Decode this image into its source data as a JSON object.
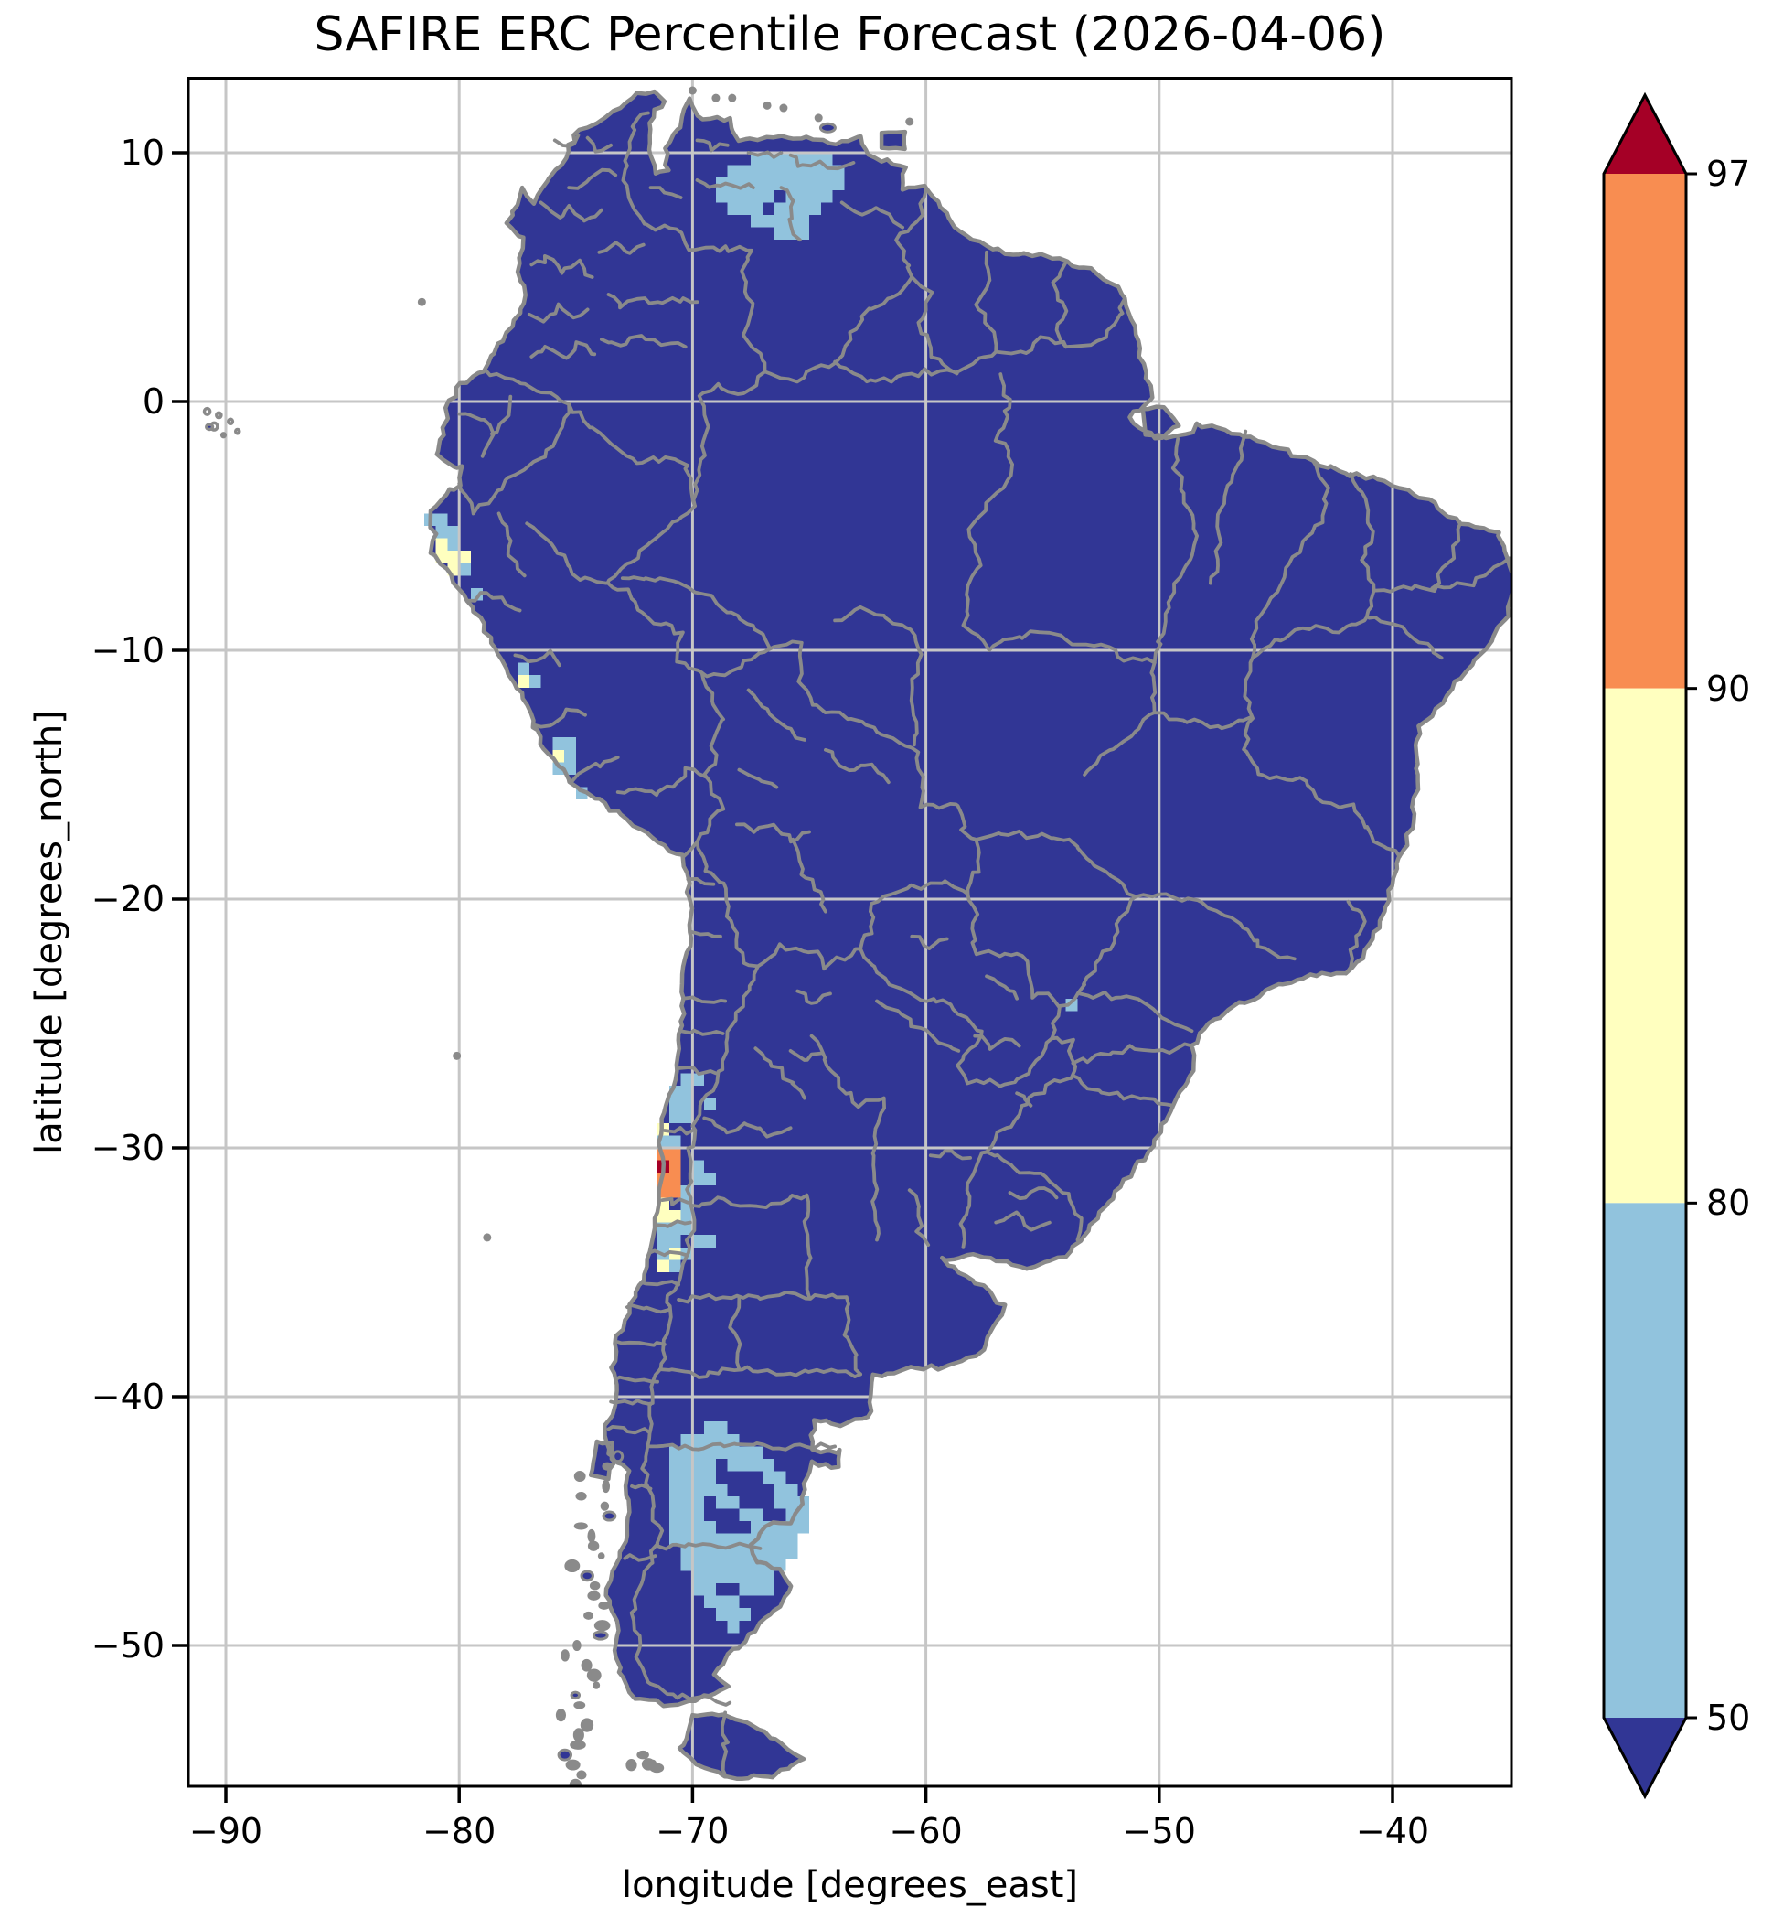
{
  "title": "SAFIRE ERC Percentile Forecast (2026-04-06)",
  "xlabel": "longitude [degrees_east]",
  "ylabel": "latitude [degrees_north]",
  "chart_data": {
    "type": "heatmap",
    "subtype": "geographic-percentile-map",
    "title": "SAFIRE ERC Percentile Forecast (2026-04-06)",
    "date": "2026-04-06",
    "xlabel": "longitude [degrees_east]",
    "ylabel": "latitude [degrees_north]",
    "xlim": [
      -91.6,
      -34.9
    ],
    "ylim": [
      -55.7,
      13.0
    ],
    "grid": true,
    "xtick_values": [
      -90,
      -80,
      -70,
      -60,
      -50,
      -40
    ],
    "xtick_labels": [
      "−90",
      "−80",
      "−70",
      "−60",
      "−50",
      "−40"
    ],
    "ytick_values": [
      10,
      0,
      -10,
      -20,
      -30,
      -40,
      -50
    ],
    "ytick_labels": [
      "10",
      "0",
      "−10",
      "−20",
      "−30",
      "−40",
      "−50"
    ],
    "cell_size_deg": 0.5,
    "base_value_label": "< 50",
    "colors": {
      "land_base": "#313695",
      "p50_80": "#91c3dd",
      "p80_90": "#ffffbf",
      "p90_97": "#f88d51",
      "over_97": "#a50026",
      "border_gray": "#8a8a8a",
      "gridline": "#c6c6c6"
    },
    "colorbar": {
      "levels": [
        50,
        80,
        90,
        97
      ],
      "tick_labels_top_to_bottom": [
        "97",
        "90",
        "80",
        "50"
      ],
      "extend": "both",
      "under_color": "#313695",
      "band_50_80": "#91c3dd",
      "band_80_90": "#ffffbf",
      "band_90_97": "#f88d51",
      "over_color": "#a50026"
    },
    "cells": {
      "p50_80": [
        [
          -67.5,
          10
        ],
        [
          -67,
          10
        ],
        [
          -66.5,
          10
        ],
        [
          -66,
          10
        ],
        [
          -65.5,
          10
        ],
        [
          -65,
          10
        ],
        [
          -64.5,
          10
        ],
        [
          -68.5,
          9.5
        ],
        [
          -68,
          9.5
        ],
        [
          -67.5,
          9.5
        ],
        [
          -67,
          9.5
        ],
        [
          -66.5,
          9.5
        ],
        [
          -66,
          9.5
        ],
        [
          -65.5,
          9.5
        ],
        [
          -65,
          9.5
        ],
        [
          -64.5,
          9.5
        ],
        [
          -64,
          9.5
        ],
        [
          -69,
          9
        ],
        [
          -68.5,
          9
        ],
        [
          -68,
          9
        ],
        [
          -67.5,
          9
        ],
        [
          -67,
          9
        ],
        [
          -66.5,
          9
        ],
        [
          -66,
          9
        ],
        [
          -65.5,
          9
        ],
        [
          -65,
          9
        ],
        [
          -64.5,
          9
        ],
        [
          -64,
          9
        ],
        [
          -69,
          8.5
        ],
        [
          -68.5,
          8.5
        ],
        [
          -68,
          8.5
        ],
        [
          -67.5,
          8.5
        ],
        [
          -67,
          8.5
        ],
        [
          -66,
          8.5
        ],
        [
          -65.5,
          8.5
        ],
        [
          -65,
          8.5
        ],
        [
          -64.5,
          8.5
        ],
        [
          -68.5,
          8
        ],
        [
          -68,
          8
        ],
        [
          -67.5,
          8
        ],
        [
          -66.5,
          8
        ],
        [
          -66,
          8
        ],
        [
          -65.5,
          8
        ],
        [
          -65,
          8
        ],
        [
          -67.5,
          7.5
        ],
        [
          -67,
          7.5
        ],
        [
          -66.5,
          7.5
        ],
        [
          -66,
          7.5
        ],
        [
          -65.5,
          7.5
        ],
        [
          -66.5,
          7
        ],
        [
          -66,
          7
        ],
        [
          -65.5,
          7
        ],
        [
          -54,
          -24
        ],
        [
          -81.5,
          -4.5
        ],
        [
          -81,
          -4.5
        ],
        [
          -81,
          -5
        ],
        [
          -80.5,
          -5
        ],
        [
          -80.5,
          -5.5
        ],
        [
          -80,
          -6.5
        ],
        [
          -79.5,
          -7.5
        ],
        [
          -77.5,
          -10.5
        ],
        [
          -77,
          -11
        ],
        [
          -76,
          -13.5
        ],
        [
          -75.5,
          -13.5
        ],
        [
          -75.5,
          -14
        ],
        [
          -76,
          -14.5
        ],
        [
          -75.5,
          -14.5
        ],
        [
          -75,
          -15.5
        ],
        [
          -70.5,
          -27
        ],
        [
          -70,
          -27
        ],
        [
          -71,
          -27.5
        ],
        [
          -70.5,
          -27.5
        ],
        [
          -71,
          -28
        ],
        [
          -70.5,
          -28
        ],
        [
          -69.5,
          -28
        ],
        [
          -71,
          -28.5
        ],
        [
          -70.5,
          -28.5
        ],
        [
          -71.5,
          -29.5
        ],
        [
          -71,
          -29.5
        ],
        [
          -70,
          -30.5
        ],
        [
          -70,
          -31
        ],
        [
          -69.5,
          -31
        ],
        [
          -70.5,
          -31.5
        ],
        [
          -70.5,
          -32
        ],
        [
          -70.5,
          -32.5
        ],
        [
          -71.5,
          -33
        ],
        [
          -71,
          -33
        ],
        [
          -70.5,
          -33
        ],
        [
          -71.5,
          -33.5
        ],
        [
          -71,
          -33.5
        ],
        [
          -70,
          -33.5
        ],
        [
          -69.5,
          -33.5
        ],
        [
          -71.5,
          -34
        ],
        [
          -70.5,
          -34
        ],
        [
          -71,
          -34.5
        ],
        [
          -69.5,
          -41
        ],
        [
          -69,
          -41
        ],
        [
          -70.5,
          -41.5
        ],
        [
          -70,
          -41.5
        ],
        [
          -69.5,
          -41.5
        ],
        [
          -69,
          -41.5
        ],
        [
          -68.5,
          -41.5
        ],
        [
          -71,
          -42
        ],
        [
          -70.5,
          -42
        ],
        [
          -70,
          -42
        ],
        [
          -69.5,
          -42
        ],
        [
          -69,
          -42
        ],
        [
          -68.5,
          -42
        ],
        [
          -68,
          -42
        ],
        [
          -67.5,
          -42
        ],
        [
          -71,
          -42.5
        ],
        [
          -70.5,
          -42.5
        ],
        [
          -70,
          -42.5
        ],
        [
          -69.5,
          -42.5
        ],
        [
          -68.5,
          -42.5
        ],
        [
          -68,
          -42.5
        ],
        [
          -67.5,
          -42.5
        ],
        [
          -67,
          -42.5
        ],
        [
          -71,
          -43
        ],
        [
          -70.5,
          -43
        ],
        [
          -70,
          -43
        ],
        [
          -69.5,
          -43
        ],
        [
          -67,
          -43
        ],
        [
          -66.5,
          -43
        ],
        [
          -71,
          -43.5
        ],
        [
          -70.5,
          -43.5
        ],
        [
          -70,
          -43.5
        ],
        [
          -69.5,
          -43.5
        ],
        [
          -69,
          -43.5
        ],
        [
          -66.5,
          -43.5
        ],
        [
          -66,
          -43.5
        ],
        [
          -71,
          -44
        ],
        [
          -70.5,
          -44
        ],
        [
          -70,
          -44
        ],
        [
          -69,
          -44
        ],
        [
          -68.5,
          -44
        ],
        [
          -66.5,
          -44
        ],
        [
          -66,
          -44
        ],
        [
          -65.5,
          -44
        ],
        [
          -71,
          -44.5
        ],
        [
          -70.5,
          -44.5
        ],
        [
          -70,
          -44.5
        ],
        [
          -68,
          -44.5
        ],
        [
          -67.5,
          -44.5
        ],
        [
          -66,
          -44.5
        ],
        [
          -65.5,
          -44.5
        ],
        [
          -71,
          -45
        ],
        [
          -70.5,
          -45
        ],
        [
          -70,
          -45
        ],
        [
          -69.5,
          -45
        ],
        [
          -67.5,
          -45
        ],
        [
          -67,
          -45
        ],
        [
          -66.5,
          -45
        ],
        [
          -66,
          -45
        ],
        [
          -65.5,
          -45
        ],
        [
          -71,
          -45.5
        ],
        [
          -70.5,
          -45.5
        ],
        [
          -70,
          -45.5
        ],
        [
          -69.5,
          -45.5
        ],
        [
          -69,
          -45.5
        ],
        [
          -68.5,
          -45.5
        ],
        [
          -68,
          -45.5
        ],
        [
          -67.5,
          -45.5
        ],
        [
          -67,
          -45.5
        ],
        [
          -66.5,
          -45.5
        ],
        [
          -66,
          -45.5
        ],
        [
          -70.5,
          -46
        ],
        [
          -70,
          -46
        ],
        [
          -69.5,
          -46
        ],
        [
          -69,
          -46
        ],
        [
          -68.5,
          -46
        ],
        [
          -68,
          -46
        ],
        [
          -67.5,
          -46
        ],
        [
          -67,
          -46
        ],
        [
          -66.5,
          -46
        ],
        [
          -66,
          -46
        ],
        [
          -70.5,
          -46.5
        ],
        [
          -70,
          -46.5
        ],
        [
          -69.5,
          -46.5
        ],
        [
          -69,
          -46.5
        ],
        [
          -68.5,
          -46.5
        ],
        [
          -68,
          -46.5
        ],
        [
          -67.5,
          -46.5
        ],
        [
          -67,
          -46.5
        ],
        [
          -66.5,
          -46.5
        ],
        [
          -70,
          -47
        ],
        [
          -69.5,
          -47
        ],
        [
          -69,
          -47
        ],
        [
          -68.5,
          -47
        ],
        [
          -68,
          -47
        ],
        [
          -67.5,
          -47
        ],
        [
          -67,
          -47
        ],
        [
          -70,
          -47.5
        ],
        [
          -69.5,
          -47.5
        ],
        [
          -68,
          -47.5
        ],
        [
          -67.5,
          -47.5
        ],
        [
          -67,
          -47.5
        ],
        [
          -69.5,
          -48
        ],
        [
          -69,
          -48
        ],
        [
          -68.5,
          -48
        ],
        [
          -69,
          -48.5
        ],
        [
          -68.5,
          -48.5
        ],
        [
          -68,
          -48.5
        ],
        [
          -68.5,
          -49
        ]
      ],
      "p80_90": [
        [
          -81,
          -5.5
        ],
        [
          -81,
          -6
        ],
        [
          -80.5,
          -6
        ],
        [
          -80,
          -6
        ],
        [
          -80.5,
          -6.5
        ],
        [
          -77.5,
          -11
        ],
        [
          -76,
          -14
        ],
        [
          -71.5,
          -29
        ],
        [
          -71.5,
          -32
        ],
        [
          -71.5,
          -32.5
        ],
        [
          -71,
          -32.5
        ],
        [
          -71,
          -34
        ],
        [
          -71.5,
          -34.5
        ]
      ],
      "p90_97": [
        [
          -71.5,
          -30
        ],
        [
          -71,
          -30
        ],
        [
          -71,
          -30.5
        ],
        [
          -71.5,
          -31
        ],
        [
          -71,
          -31
        ],
        [
          -71.5,
          -31.5
        ],
        [
          -71,
          -31.5
        ]
      ],
      "over_97": [
        [
          -71.5,
          -30.5
        ]
      ]
    }
  }
}
